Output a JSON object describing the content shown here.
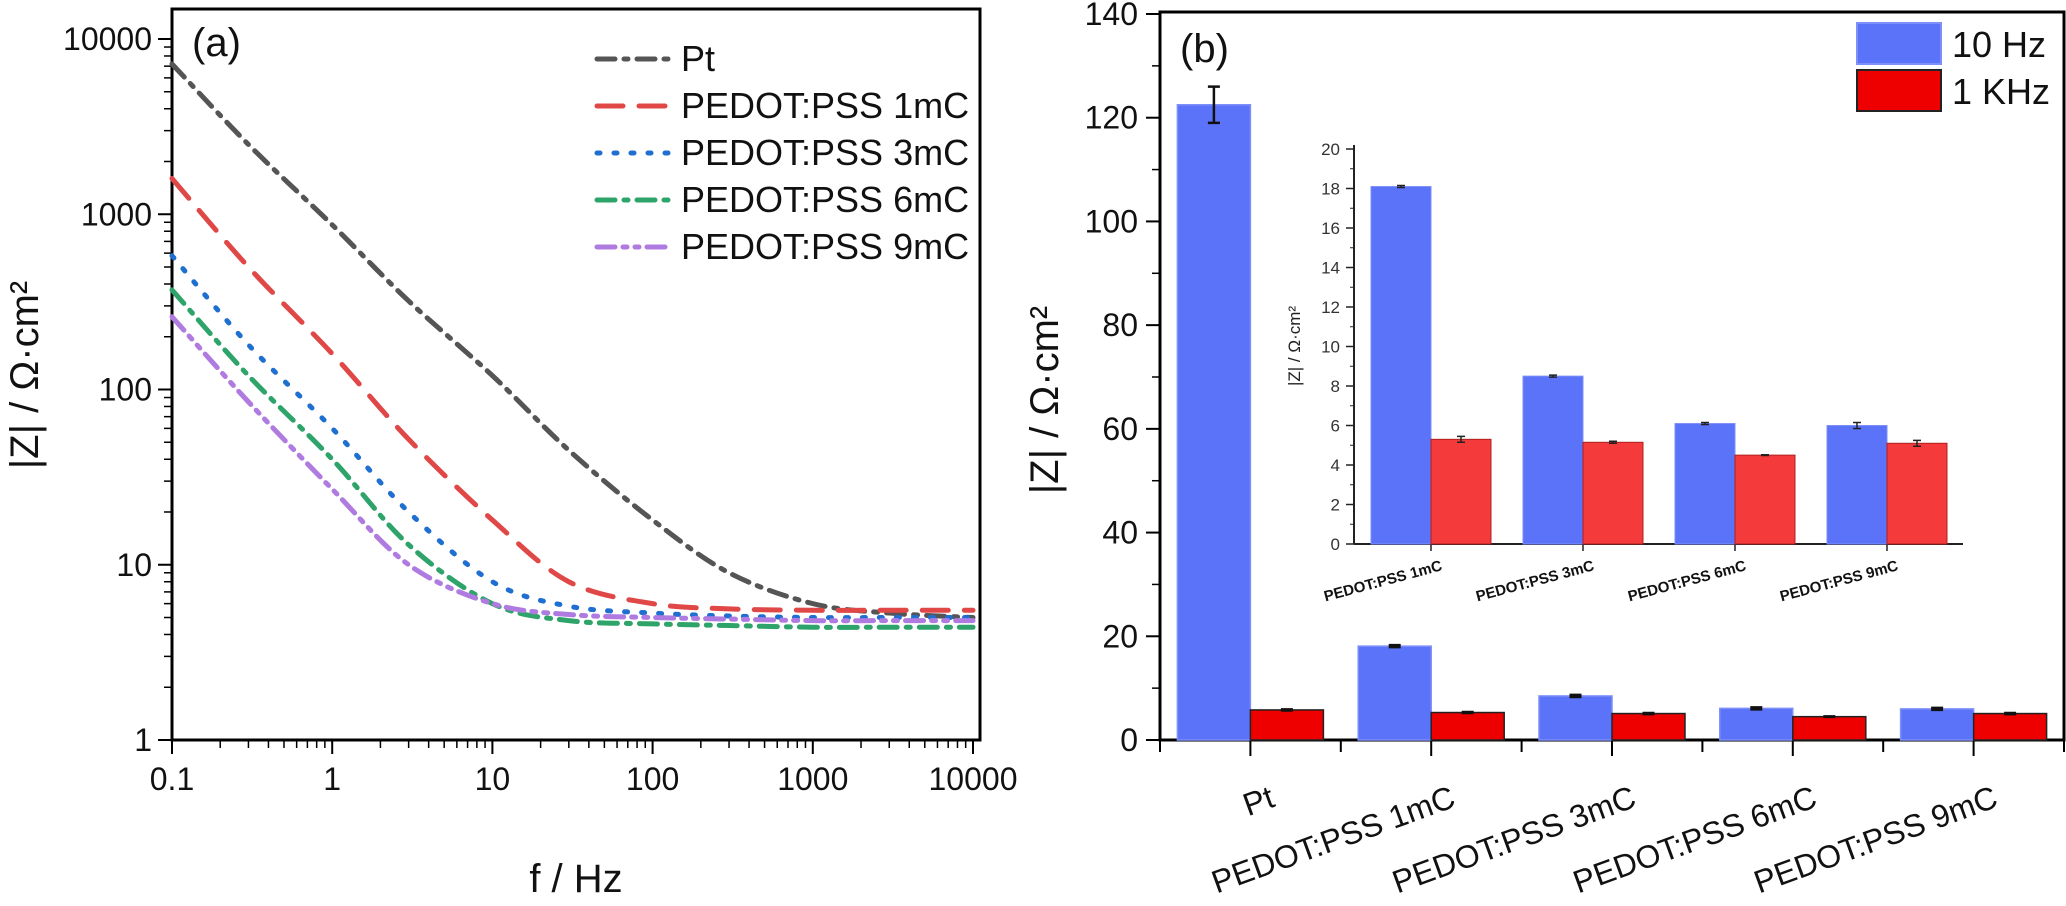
{
  "chart_data": [
    {
      "type": "line",
      "panel_label": "(a)",
      "xlabel": "f / Hz",
      "ylabel": "|Z| / Ω·cm²",
      "xscale": "log",
      "yscale": "log",
      "xlim": [
        0.1,
        10000
      ],
      "ylim": [
        1,
        10000
      ],
      "xticks": [
        "0.1",
        "1",
        "10",
        "100",
        "1000",
        "10000"
      ],
      "yticks": [
        "1",
        "10",
        "100",
        "1000",
        "10000"
      ],
      "legend_position": "top-right",
      "x": [
        0.1,
        0.3,
        1,
        3,
        10,
        30,
        100,
        300,
        1000,
        3000,
        10000
      ],
      "series": [
        {
          "name": "Pt",
          "color": "#555555",
          "dash": "dashdot",
          "values": [
            7200,
            2500,
            870,
            320,
            120,
            45,
            18,
            9,
            6,
            5.3,
            5.0
          ]
        },
        {
          "name": "PEDOT:PSS 1mC",
          "color": "#e04848",
          "dash": "dash",
          "values": [
            1600,
            500,
            160,
            52,
            18,
            8,
            6,
            5.6,
            5.5,
            5.5,
            5.5
          ]
        },
        {
          "name": "PEDOT:PSS 3mC",
          "color": "#1f6fd0",
          "dash": "dot",
          "values": [
            580,
            180,
            60,
            20,
            8,
            5.8,
            5.3,
            5.1,
            5.0,
            5.0,
            5.0
          ]
        },
        {
          "name": "PEDOT:PSS 6mC",
          "color": "#2ea36a",
          "dash": "dashdot",
          "values": [
            370,
            120,
            40,
            13,
            6,
            4.8,
            4.6,
            4.5,
            4.4,
            4.4,
            4.4
          ]
        },
        {
          "name": "PEDOT:PSS 9mC",
          "color": "#b07be0",
          "dash": "dashdotdot",
          "values": [
            260,
            85,
            27,
            10,
            6,
            5.2,
            5.0,
            4.9,
            4.8,
            4.8,
            4.8
          ]
        }
      ]
    },
    {
      "type": "bar",
      "panel_label": "(b)",
      "ylabel": "|Z| / Ω·cm²",
      "ylim": [
        0,
        140
      ],
      "yticks": [
        "0",
        "20",
        "40",
        "60",
        "80",
        "100",
        "120",
        "140"
      ],
      "legend_position": "top-right",
      "categories": [
        "Pt",
        "PEDOT:PSS 1mC",
        "PEDOT:PSS 3mC",
        "PEDOT:PSS 6mC",
        "PEDOT:PSS 9mC"
      ],
      "series": [
        {
          "name": "10 Hz",
          "color": "#5b73f8",
          "values": [
            122.5,
            18.1,
            8.5,
            6.1,
            6.0
          ],
          "errors": [
            3.5,
            0.2,
            0.2,
            0.2,
            0.2
          ]
        },
        {
          "name": "1 KHz",
          "color": "#ee0000",
          "values": [
            5.8,
            5.3,
            5.1,
            4.5,
            5.1
          ],
          "errors": [
            0.1,
            0.1,
            0.1,
            0.05,
            0.1
          ]
        }
      ],
      "inset": {
        "ylabel": "|Z| / Ω·cm²",
        "ylim": [
          0,
          20
        ],
        "yticks": [
          "0",
          "2",
          "4",
          "6",
          "8",
          "10",
          "12",
          "14",
          "16",
          "18",
          "20"
        ],
        "categories": [
          "PEDOT:PSS 1mC",
          "PEDOT:PSS 3mC",
          "PEDOT:PSS 6mC",
          "PEDOT:PSS 9mC"
        ],
        "series": [
          {
            "name": "10 Hz",
            "color": "#5b73f8",
            "values": [
              18.1,
              8.5,
              6.1,
              6.0
            ],
            "errors": [
              0.05,
              0.05,
              0.05,
              0.15
            ]
          },
          {
            "name": "1 KHz",
            "color": "#f43a3a",
            "values": [
              5.3,
              5.15,
              4.5,
              5.1
            ],
            "errors": [
              0.15,
              0.05,
              0.02,
              0.15
            ]
          }
        ]
      }
    }
  ]
}
